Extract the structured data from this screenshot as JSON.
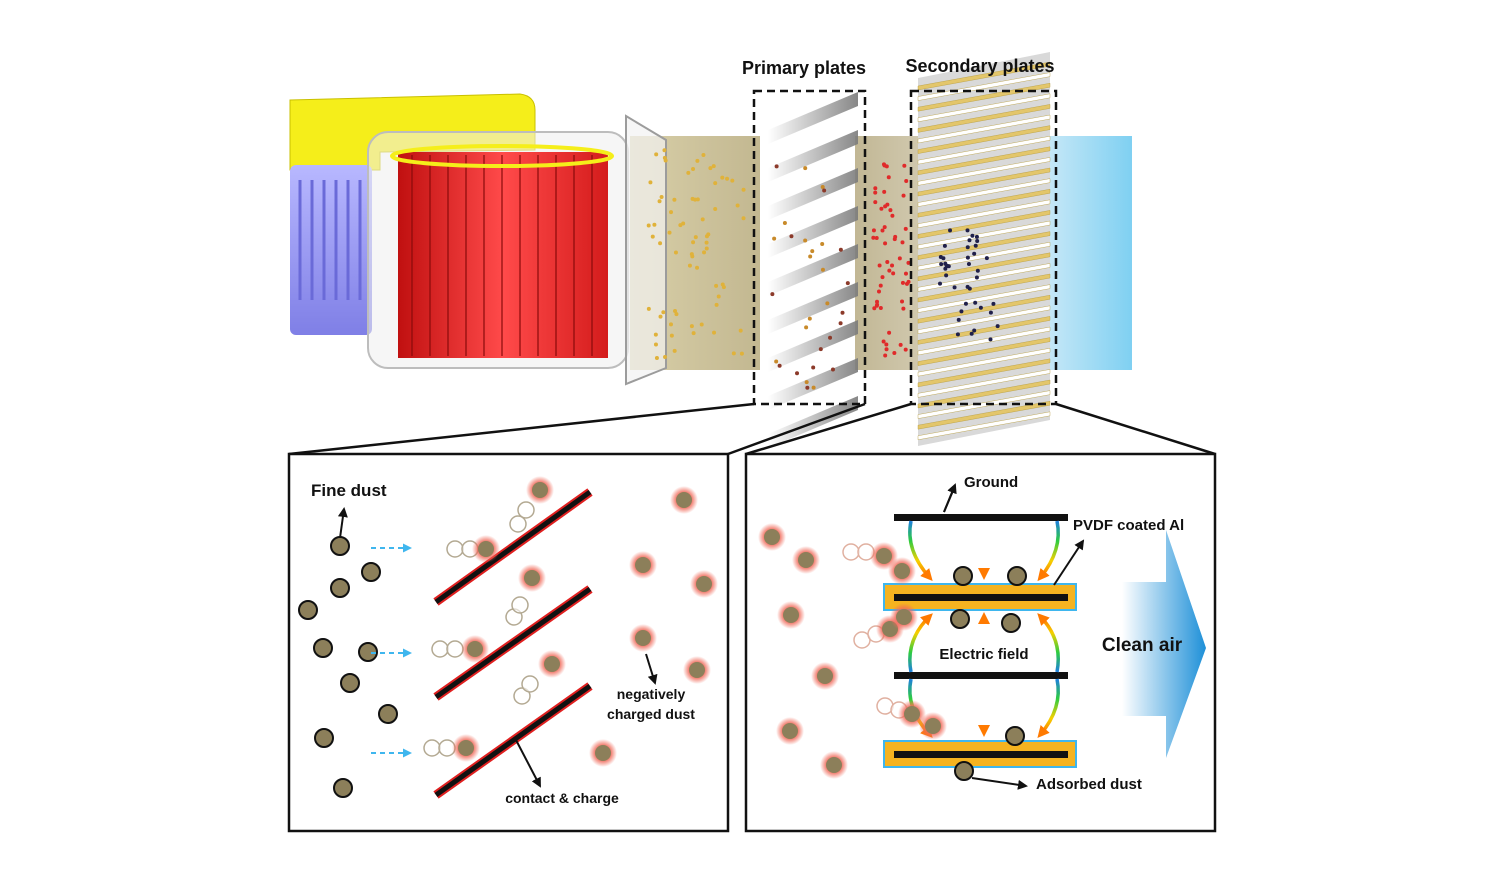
{
  "top": {
    "primary_label": "Primary plates",
    "secondary_label": "Secondary plates"
  },
  "left_panel": {
    "fine_dust_label": "Fine dust",
    "negatively_charged_label_line1": "negatively",
    "negatively_charged_label_line2": "charged dust",
    "contact_label": "contact & charge"
  },
  "right_panel": {
    "ground_label": "Ground",
    "pvdf_label": "PVDF coated Al",
    "electric_field_label": "Electric field",
    "clean_air_label": "Clean air",
    "adsorbed_label": "Adsorbed dust"
  },
  "colors": {
    "fan_housing": "#ef2b2b",
    "yellow_duct": "#f5ee1a",
    "motor": "#8f8ff0",
    "neutral_dust": "#8c7f5a",
    "charged_glow": "#f06a5a",
    "plate_coating": "#f5b320",
    "clean_air": "#3aa6e0",
    "flow_arrow": "#3fb6ee"
  }
}
